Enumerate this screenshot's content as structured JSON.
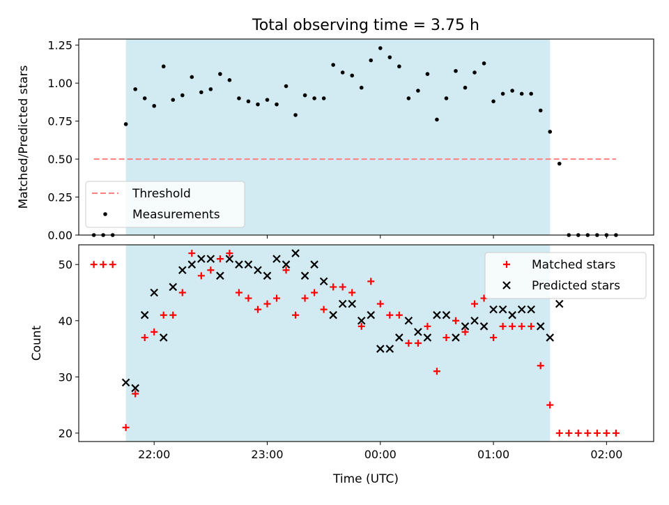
{
  "figure": {
    "title": "Total observing time = 3.75 h",
    "xlabel": "Time (UTC)"
  },
  "chart_data": [
    {
      "type": "scatter",
      "panel": "top",
      "ylabel": "Matched/Predicted stars",
      "ylim": [
        0,
        1.29
      ],
      "yticks": [
        0.0,
        0.25,
        0.5,
        0.75,
        1.0,
        1.25
      ],
      "ytick_labels": [
        "0.00",
        "0.25",
        "0.50",
        "0.75",
        "1.00",
        "1.25"
      ],
      "xlim": [
        "21:20",
        "02:25"
      ],
      "shaded_span": [
        "21:45",
        "01:30"
      ],
      "shaded_color": "#add8e6",
      "legend_position": "lower-left",
      "threshold": {
        "name": "Threshold",
        "value": 0.5,
        "x_range": [
          "21:28",
          "02:05"
        ],
        "color": "#ff7f7f",
        "style": "dashed"
      },
      "series": [
        {
          "name": "Measurements",
          "color": "#000000",
          "marker": "dot",
          "x": [
            "21:28",
            "21:33",
            "21:38",
            "21:45",
            "21:50",
            "21:55",
            "22:00",
            "22:05",
            "22:10",
            "22:15",
            "22:20",
            "22:25",
            "22:30",
            "22:35",
            "22:40",
            "22:45",
            "22:50",
            "22:55",
            "23:00",
            "23:05",
            "23:10",
            "23:15",
            "23:20",
            "23:25",
            "23:30",
            "23:35",
            "23:40",
            "23:45",
            "23:50",
            "23:55",
            "00:00",
            "00:05",
            "00:10",
            "00:15",
            "00:20",
            "00:25",
            "00:30",
            "00:35",
            "00:40",
            "00:45",
            "00:50",
            "00:55",
            "01:00",
            "01:05",
            "01:10",
            "01:15",
            "01:20",
            "01:25",
            "01:30",
            "01:35",
            "01:40",
            "01:45",
            "01:50",
            "01:55",
            "02:00",
            "02:05"
          ],
          "y": [
            0.0,
            0.0,
            0.0,
            0.73,
            0.96,
            0.9,
            0.85,
            1.11,
            0.89,
            0.92,
            1.04,
            0.94,
            0.96,
            1.06,
            1.02,
            0.9,
            0.88,
            0.86,
            0.89,
            0.86,
            0.98,
            0.79,
            0.92,
            0.9,
            0.9,
            1.12,
            1.07,
            1.05,
            0.97,
            1.15,
            1.23,
            1.17,
            1.11,
            0.9,
            0.95,
            1.06,
            0.76,
            0.9,
            1.08,
            0.97,
            1.07,
            1.13,
            0.88,
            0.93,
            0.95,
            0.93,
            0.93,
            0.82,
            0.68,
            0.47,
            0.0,
            0.0,
            0.0,
            0.0,
            0.0,
            0.0
          ]
        }
      ]
    },
    {
      "type": "scatter",
      "panel": "bottom",
      "ylabel": "Count",
      "ylim": [
        18.5,
        53.5
      ],
      "yticks": [
        20,
        30,
        40,
        50
      ],
      "ytick_labels": [
        "20",
        "30",
        "40",
        "50"
      ],
      "xlim": [
        "21:20",
        "02:25"
      ],
      "xticks": [
        "22:00",
        "23:00",
        "00:00",
        "01:00",
        "02:00"
      ],
      "shaded_span": [
        "21:45",
        "01:30"
      ],
      "shaded_color": "#add8e6",
      "legend_position": "upper-right",
      "series": [
        {
          "name": "Matched stars",
          "color": "#ff0000",
          "marker": "plus",
          "x": [
            "21:28",
            "21:33",
            "21:38",
            "21:45",
            "21:50",
            "21:55",
            "22:00",
            "22:05",
            "22:10",
            "22:15",
            "22:20",
            "22:25",
            "22:30",
            "22:35",
            "22:40",
            "22:45",
            "22:50",
            "22:55",
            "23:00",
            "23:05",
            "23:10",
            "23:15",
            "23:20",
            "23:25",
            "23:30",
            "23:35",
            "23:40",
            "23:45",
            "23:50",
            "23:55",
            "00:00",
            "00:05",
            "00:10",
            "00:15",
            "00:20",
            "00:25",
            "00:30",
            "00:35",
            "00:40",
            "00:45",
            "00:50",
            "00:55",
            "01:00",
            "01:05",
            "01:10",
            "01:15",
            "01:20",
            "01:25",
            "01:30",
            "01:35",
            "01:40",
            "01:45",
            "01:50",
            "01:55",
            "02:00",
            "02:05"
          ],
          "y": [
            50,
            50,
            50,
            21,
            27,
            37,
            38,
            41,
            41,
            45,
            52,
            48,
            49,
            51,
            52,
            45,
            44,
            42,
            43,
            44,
            49,
            41,
            44,
            45,
            42,
            46,
            46,
            45,
            39,
            47,
            43,
            41,
            41,
            36,
            36,
            39,
            31,
            37,
            40,
            38,
            43,
            44,
            37,
            39,
            39,
            39,
            39,
            32,
            25,
            20,
            20,
            20,
            20,
            20,
            20,
            20
          ]
        },
        {
          "name": "Predicted stars",
          "color": "#000000",
          "marker": "x",
          "x": [
            "21:45",
            "21:50",
            "21:55",
            "22:00",
            "22:05",
            "22:10",
            "22:15",
            "22:20",
            "22:25",
            "22:30",
            "22:35",
            "22:40",
            "22:45",
            "22:50",
            "22:55",
            "23:00",
            "23:05",
            "23:10",
            "23:15",
            "23:20",
            "23:25",
            "23:30",
            "23:35",
            "23:40",
            "23:45",
            "23:50",
            "23:55",
            "00:00",
            "00:05",
            "00:10",
            "00:15",
            "00:20",
            "00:25",
            "00:30",
            "00:35",
            "00:40",
            "00:45",
            "00:50",
            "00:55",
            "01:00",
            "01:05",
            "01:10",
            "01:15",
            "01:20",
            "01:25",
            "01:30",
            "01:35"
          ],
          "y": [
            29,
            28,
            41,
            45,
            37,
            46,
            49,
            50,
            51,
            51,
            48,
            51,
            50,
            50,
            49,
            48,
            51,
            50,
            52,
            48,
            50,
            47,
            41,
            43,
            43,
            40,
            41,
            35,
            35,
            37,
            40,
            38,
            37,
            41,
            41,
            37,
            39,
            40,
            39,
            42,
            42,
            41,
            42,
            42,
            39,
            37,
            43
          ]
        }
      ]
    }
  ]
}
